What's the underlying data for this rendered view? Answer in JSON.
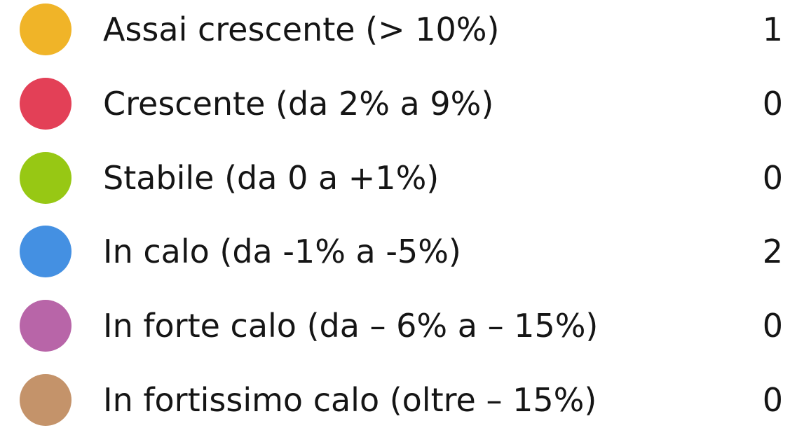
{
  "legend": {
    "items": [
      {
        "label": "Assai crescente (> 10%)",
        "count": "1",
        "color": "#f0b428"
      },
      {
        "label": "Crescente (da 2% a 9%)",
        "count": "0",
        "color": "#e34057"
      },
      {
        "label": "Stabile (da 0 a +1%)",
        "count": "0",
        "color": "#97c814"
      },
      {
        "label": "In calo (da -1% a -5%)",
        "count": "2",
        "color": "#4490e2"
      },
      {
        "label": "In forte calo (da – 6% a – 15%)",
        "count": "0",
        "color": "#b865a8"
      },
      {
        "label": "In fortissimo calo (oltre – 15%)",
        "count": "0",
        "color": "#c4936a"
      }
    ]
  }
}
